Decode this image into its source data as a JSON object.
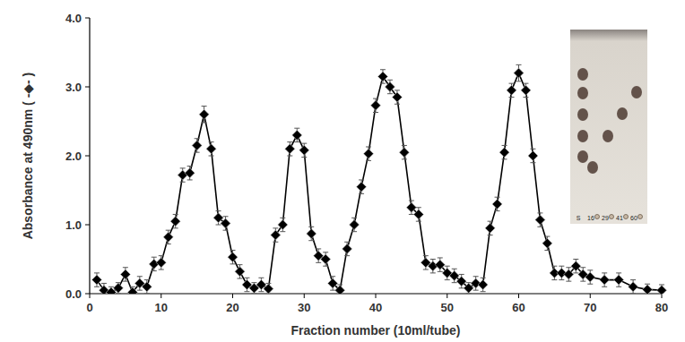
{
  "chart_data": {
    "type": "line",
    "x_label": "Fraction number (10ml/tube)",
    "y_label": "Absorbance at 490nm ( -◆- )",
    "x": [
      1,
      2,
      3,
      4,
      5,
      6,
      7,
      8,
      9,
      10,
      11,
      12,
      13,
      14,
      15,
      16,
      17,
      18,
      19,
      20,
      21,
      22,
      23,
      24,
      25,
      26,
      27,
      28,
      29,
      30,
      31,
      32,
      33,
      34,
      35,
      36,
      37,
      38,
      39,
      40,
      41,
      42,
      43,
      44,
      45,
      46,
      47,
      48,
      49,
      50,
      51,
      52,
      53,
      54,
      55,
      56,
      57,
      58,
      59,
      60,
      61,
      62,
      63,
      64,
      65,
      66,
      67,
      68,
      69,
      70,
      72,
      74,
      76,
      78,
      80
    ],
    "values": [
      0.2,
      0.05,
      0.02,
      0.08,
      0.28,
      0.02,
      0.15,
      0.1,
      0.43,
      0.45,
      0.82,
      1.05,
      1.72,
      1.75,
      2.15,
      2.6,
      2.1,
      1.1,
      1.02,
      0.53,
      0.32,
      0.13,
      0.08,
      0.13,
      0.07,
      0.85,
      1.0,
      2.1,
      2.3,
      2.08,
      0.87,
      0.55,
      0.5,
      0.15,
      0.05,
      0.65,
      1.0,
      1.55,
      2.03,
      2.73,
      3.15,
      3.0,
      2.85,
      2.05,
      1.25,
      1.15,
      0.45,
      0.4,
      0.42,
      0.3,
      0.26,
      0.18,
      0.08,
      0.15,
      0.13,
      0.95,
      1.3,
      2.05,
      2.95,
      3.2,
      2.95,
      2.0,
      1.07,
      0.73,
      0.3,
      0.3,
      0.28,
      0.4,
      0.28,
      0.24,
      0.2,
      0.2,
      0.1,
      0.06,
      0.05
    ],
    "errors": [
      0.1,
      0.1,
      0.08,
      0.08,
      0.1,
      0.08,
      0.1,
      0.1,
      0.1,
      0.1,
      0.1,
      0.1,
      0.1,
      0.1,
      0.1,
      0.12,
      0.1,
      0.1,
      0.1,
      0.1,
      0.1,
      0.1,
      0.08,
      0.1,
      0.08,
      0.1,
      0.1,
      0.1,
      0.1,
      0.1,
      0.1,
      0.1,
      0.1,
      0.1,
      0.08,
      0.1,
      0.1,
      0.1,
      0.1,
      0.1,
      0.1,
      0.1,
      0.1,
      0.1,
      0.1,
      0.1,
      0.1,
      0.1,
      0.1,
      0.1,
      0.1,
      0.1,
      0.08,
      0.1,
      0.1,
      0.1,
      0.1,
      0.1,
      0.1,
      0.12,
      0.1,
      0.1,
      0.1,
      0.1,
      0.1,
      0.1,
      0.1,
      0.1,
      0.1,
      0.1,
      0.1,
      0.1,
      0.1,
      0.08,
      0.08
    ],
    "color": "#000000",
    "marker": "diamond",
    "line_style": "solid",
    "xlim": [
      0,
      80
    ],
    "xticks": [
      0,
      10,
      20,
      30,
      40,
      50,
      60,
      70,
      80
    ],
    "ylim": [
      0,
      4
    ],
    "yticks": [
      {
        "value": 0,
        "label": "0.0"
      },
      {
        "value": 1,
        "label": "1.0"
      },
      {
        "value": 2,
        "label": "2.0"
      },
      {
        "value": 3,
        "label": "3.0"
      },
      {
        "value": 4,
        "label": "4.0"
      }
    ],
    "grid": false,
    "annotations": [
      "S",
      "16",
      "29",
      "41",
      "60"
    ]
  }
}
